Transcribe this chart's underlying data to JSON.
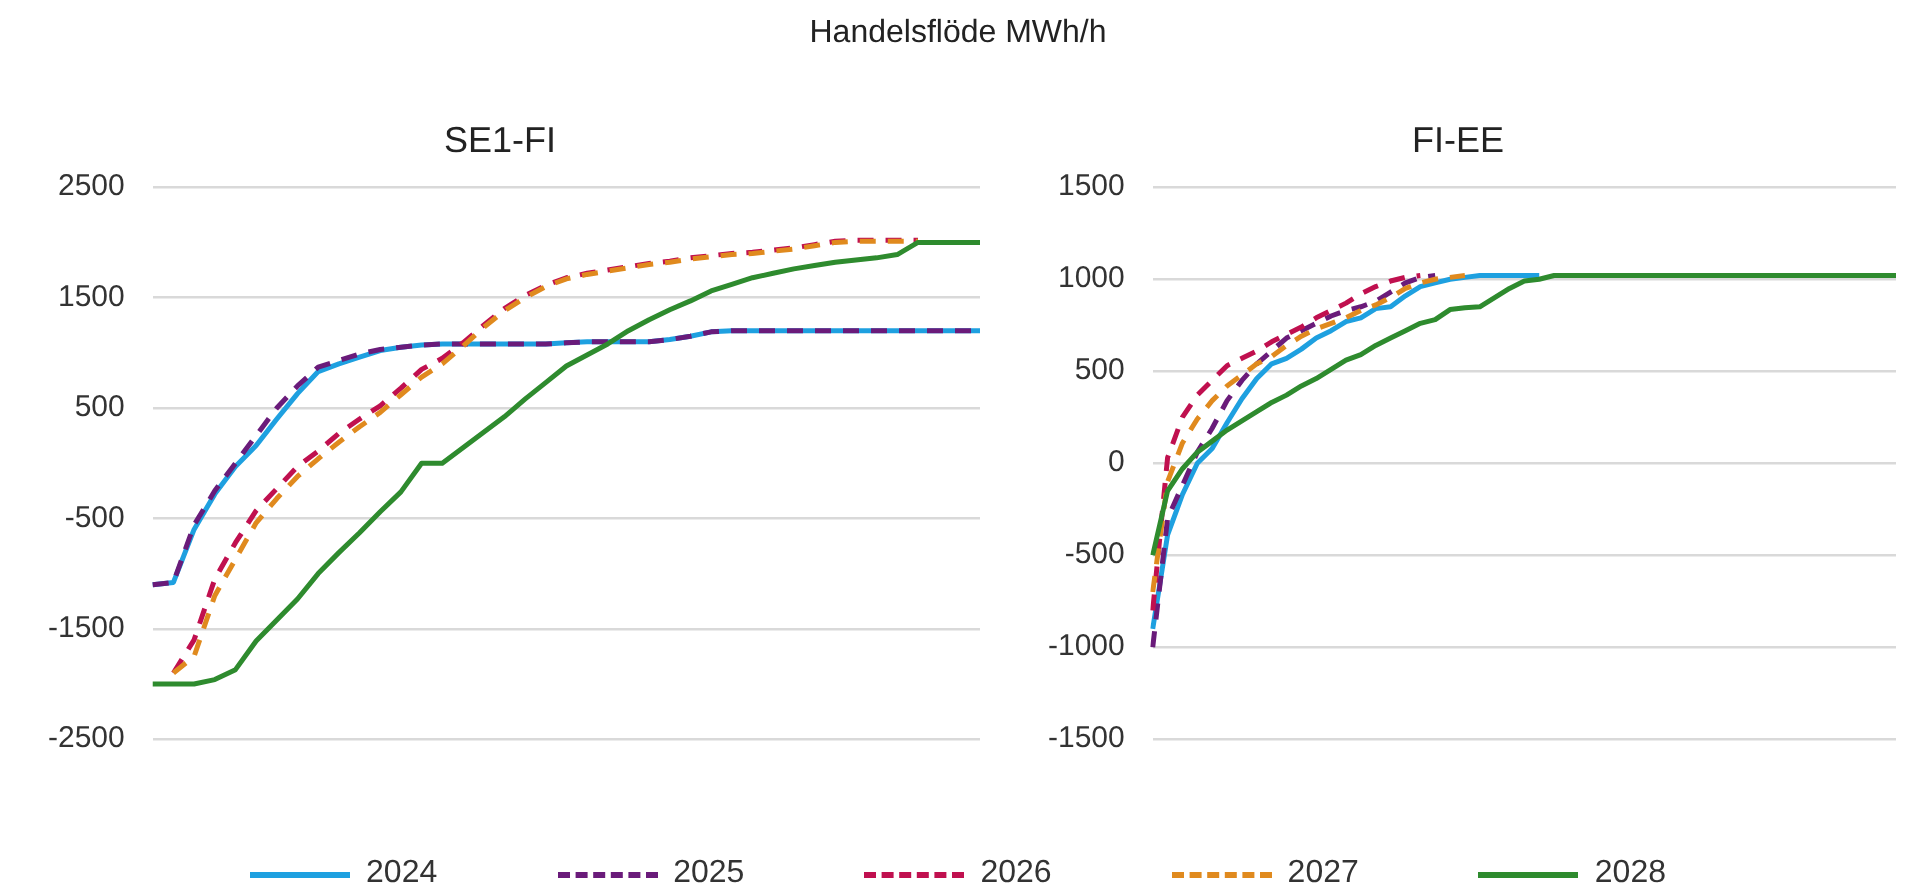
{
  "chart_data": [
    {
      "type": "line",
      "title": "SE1-FI",
      "annotations": [
        "Handelsflöde MWh/h"
      ],
      "legend": "bottom",
      "grid": "y",
      "marker": "none",
      "categories": [
        null,
        null,
        null,
        null,
        null,
        null,
        null,
        null,
        null,
        null,
        null,
        null,
        null,
        null,
        null,
        null,
        null,
        null,
        null,
        null,
        null,
        null,
        null,
        null,
        null,
        null,
        null,
        null,
        null,
        null,
        null,
        null,
        null,
        null,
        null,
        null,
        null,
        null,
        null,
        null,
        null
      ],
      "ylim": [
        -2500,
        2500
      ],
      "yticks": [
        -2500,
        -1500,
        -500,
        500,
        1500,
        2500
      ],
      "series": [
        {
          "name": "2024",
          "color": "#1ea0e0",
          "line_style": "solid",
          "values": [
            -1100,
            -1080,
            -600,
            -280,
            -30,
            160,
            400,
            630,
            830,
            900,
            960,
            1020,
            1050,
            1070,
            1080,
            1080,
            1080,
            1080,
            1080,
            1080,
            1090,
            1100,
            1100,
            1100,
            1100,
            1120,
            1150,
            1190,
            1200,
            1200,
            1200,
            1200,
            1200,
            1200,
            1200,
            1200,
            1200,
            1200,
            1200,
            1200,
            1200
          ]
        },
        {
          "name": "2025",
          "color": "#6a1b7a",
          "line_style": "dashed",
          "values": [
            -1100,
            -1080,
            -560,
            -250,
            0,
            250,
            500,
            700,
            870,
            930,
            990,
            1030,
            1050,
            1070,
            1080,
            1080,
            1080,
            1080,
            1080,
            1080,
            1090,
            1100,
            1100,
            1100,
            1100,
            1120,
            1150,
            1190,
            1200,
            1200,
            1200,
            1200,
            1200,
            1200,
            1200,
            1200,
            1200,
            1200,
            1200,
            1200,
            1200
          ]
        },
        {
          "name": "2026",
          "color": "#c0104f",
          "line_style": "dashed",
          "values": [
            null,
            -1900,
            -1600,
            -1050,
            -720,
            -430,
            -230,
            -30,
            110,
            270,
            400,
            520,
            680,
            850,
            950,
            1090,
            1250,
            1400,
            1520,
            1610,
            1680,
            1720,
            1750,
            1780,
            1810,
            1830,
            1860,
            1880,
            1900,
            1910,
            1930,
            1950,
            1980,
            2010,
            2020,
            2020,
            2020,
            2020,
            null,
            null,
            null
          ]
        },
        {
          "name": "2027",
          "color": "#e08a1e",
          "line_style": "dashed",
          "values": [
            null,
            -1900,
            -1750,
            -1200,
            -870,
            -540,
            -320,
            -120,
            40,
            190,
            330,
            460,
            620,
            780,
            900,
            1060,
            1230,
            1380,
            1500,
            1600,
            1670,
            1710,
            1740,
            1770,
            1800,
            1820,
            1850,
            1870,
            1890,
            1900,
            1920,
            1940,
            1970,
            2000,
            2010,
            2010,
            2010,
            2010,
            null,
            null,
            null
          ]
        },
        {
          "name": "2028",
          "color": "#2e8b2e",
          "line_style": "solid",
          "values": [
            -2000,
            -2000,
            -2000,
            -1960,
            -1870,
            -1610,
            -1420,
            -1230,
            -1000,
            -810,
            -630,
            -440,
            -260,
            0,
            0,
            140,
            280,
            420,
            580,
            730,
            880,
            980,
            1080,
            1200,
            1300,
            1390,
            1470,
            1560,
            1620,
            1680,
            1720,
            1760,
            1790,
            1820,
            1840,
            1860,
            1890,
            2000,
            2000,
            2000,
            2000
          ]
        }
      ]
    },
    {
      "type": "line",
      "title": "FI-EE",
      "grid": "y",
      "marker": "none",
      "categories": [
        null,
        null,
        null,
        null,
        null,
        null,
        null,
        null,
        null,
        null,
        null,
        null,
        null,
        null,
        null,
        null,
        null,
        null,
        null,
        null,
        null,
        null,
        null,
        null,
        null,
        null,
        null,
        null,
        null,
        null,
        null,
        null,
        null,
        null,
        null,
        null,
        null,
        null,
        null,
        null,
        null,
        null,
        null,
        null,
        null,
        null,
        null,
        null,
        null,
        null,
        null
      ],
      "ylim": [
        -1500,
        1500
      ],
      "yticks": [
        -1500,
        -1000,
        -500,
        0,
        500,
        1000,
        1500
      ],
      "series": [
        {
          "name": "2024",
          "color": "#1ea0e0",
          "line_style": "solid",
          "values": [
            -900,
            -390,
            -170,
            0,
            80,
            220,
            350,
            460,
            540,
            570,
            620,
            680,
            720,
            770,
            790,
            840,
            850,
            910,
            960,
            980,
            1000,
            1010,
            1020,
            1020,
            1020,
            1020,
            1020,
            null,
            null,
            null,
            null,
            null,
            null,
            null,
            null,
            null,
            null,
            null,
            null,
            null,
            null,
            null,
            null,
            null,
            null,
            null,
            null,
            null,
            null,
            null,
            null
          ]
        },
        {
          "name": "2025",
          "color": "#6a1b7a",
          "line_style": "dashed",
          "values": [
            -1000,
            -300,
            -120,
            60,
            190,
            340,
            450,
            540,
            610,
            680,
            720,
            760,
            800,
            830,
            850,
            880,
            930,
            980,
            1010,
            1020,
            null,
            null,
            null,
            null,
            null,
            null,
            null,
            null,
            null,
            null,
            null,
            null,
            null,
            null,
            null,
            null,
            null,
            null,
            null,
            null,
            null,
            null,
            null,
            null,
            null,
            null,
            null,
            null,
            null,
            null,
            null
          ]
        },
        {
          "name": "2026",
          "color": "#c0104f",
          "line_style": "dashed",
          "values": [
            -800,
            30,
            250,
            370,
            450,
            530,
            570,
            610,
            660,
            700,
            740,
            790,
            830,
            870,
            920,
            960,
            990,
            1010,
            1020,
            null,
            null,
            null,
            null,
            null,
            null,
            null,
            null,
            null,
            null,
            null,
            null,
            null,
            null,
            null,
            null,
            null,
            null,
            null,
            null,
            null,
            null,
            null,
            null,
            null,
            null,
            null,
            null,
            null,
            null,
            null,
            null
          ]
        },
        {
          "name": "2027",
          "color": "#e08a1e",
          "line_style": "dashed",
          "values": [
            -700,
            -100,
            110,
            240,
            340,
            420,
            480,
            540,
            580,
            640,
            690,
            730,
            760,
            790,
            830,
            860,
            900,
            950,
            980,
            1000,
            1010,
            1020,
            null,
            null,
            null,
            null,
            null,
            null,
            null,
            null,
            null,
            null,
            null,
            null,
            null,
            null,
            null,
            null,
            null,
            null,
            null,
            null,
            null,
            null,
            null,
            null,
            null,
            null,
            null,
            null,
            null
          ]
        },
        {
          "name": "2028",
          "color": "#2e8b2e",
          "line_style": "solid",
          "values": [
            -500,
            -150,
            -30,
            60,
            120,
            180,
            230,
            280,
            330,
            370,
            420,
            460,
            510,
            560,
            590,
            640,
            680,
            720,
            760,
            780,
            835,
            845,
            850,
            900,
            950,
            990,
            1000,
            1020,
            1020,
            1020,
            1020,
            1020,
            1020,
            1020,
            1020,
            1020,
            1020,
            1020,
            1020,
            1020,
            1020,
            1020,
            1020,
            1020,
            1020,
            1020,
            1020,
            1020,
            1020,
            1020,
            1020
          ]
        }
      ]
    }
  ]
}
